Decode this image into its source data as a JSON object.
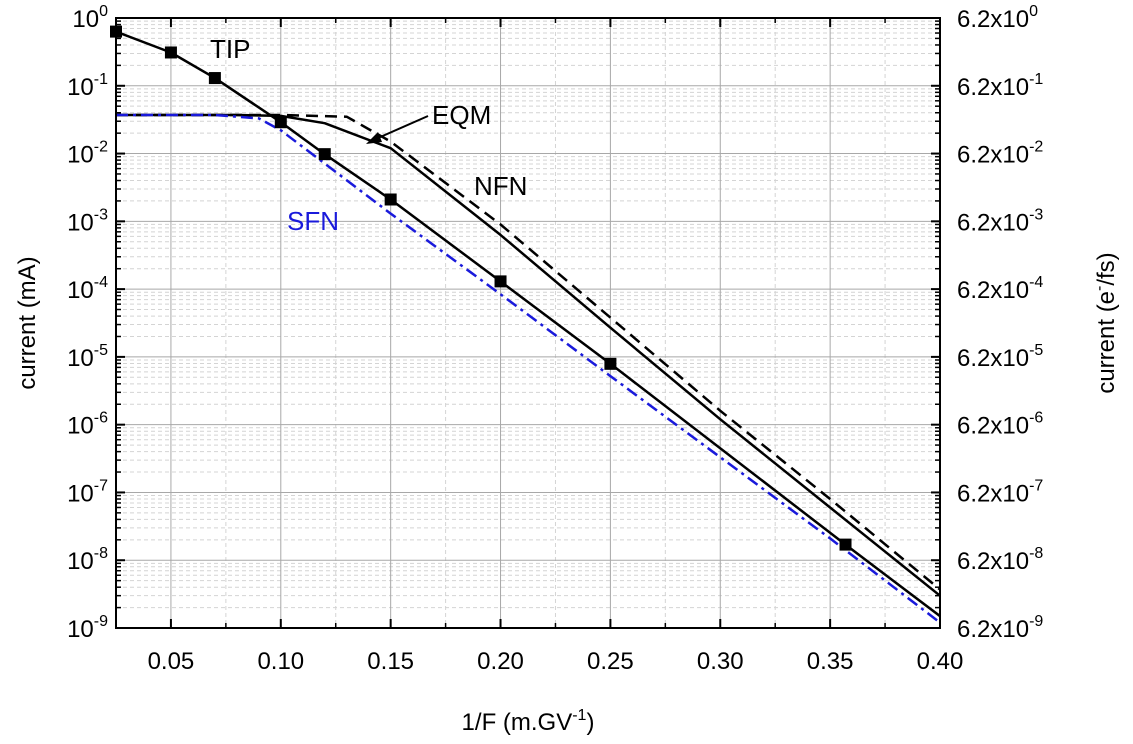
{
  "chart_data": {
    "type": "line",
    "xlabel": "1/F (m.GV",
    "xlabel_sup": "-1",
    "xlabel_end": ")",
    "ylabel": "current (mA)",
    "ylabel_right": "current (e",
    "ylabel_right_sup": "-",
    "ylabel_right_end": "/fs)",
    "xlim": [
      0.025,
      0.4
    ],
    "ylim": [
      1e-09,
      1
    ],
    "yscale": "log",
    "grid": true,
    "x_ticks": [
      "0.05",
      "0.10",
      "0.15",
      "0.20",
      "0.25",
      "0.30",
      "0.35",
      "0.40"
    ],
    "x_tick_values": [
      0.05,
      0.1,
      0.15,
      0.2,
      0.25,
      0.3,
      0.35,
      0.4
    ],
    "y_ticks": [
      {
        "base": "10",
        "exp": "0"
      },
      {
        "base": "10",
        "exp": "-1"
      },
      {
        "base": "10",
        "exp": "-2"
      },
      {
        "base": "10",
        "exp": "-3"
      },
      {
        "base": "10",
        "exp": "-4"
      },
      {
        "base": "10",
        "exp": "-5"
      },
      {
        "base": "10",
        "exp": "-6"
      },
      {
        "base": "10",
        "exp": "-7"
      },
      {
        "base": "10",
        "exp": "-8"
      },
      {
        "base": "10",
        "exp": "-9"
      }
    ],
    "y_ticks_right": [
      {
        "base": "6.2x10",
        "exp": "0"
      },
      {
        "base": "6.2x10",
        "exp": "-1"
      },
      {
        "base": "6.2x10",
        "exp": "-2"
      },
      {
        "base": "6.2x10",
        "exp": "-3"
      },
      {
        "base": "6.2x10",
        "exp": "-4"
      },
      {
        "base": "6.2x10",
        "exp": "-5"
      },
      {
        "base": "6.2x10",
        "exp": "-6"
      },
      {
        "base": "6.2x10",
        "exp": "-7"
      },
      {
        "base": "6.2x10",
        "exp": "-8"
      },
      {
        "base": "6.2x10",
        "exp": "-9"
      }
    ],
    "series": [
      {
        "name": "TIP",
        "color": "#000000",
        "style": "solid",
        "markers": true,
        "x": [
          0.025,
          0.05,
          0.07,
          0.1,
          0.12,
          0.15,
          0.2,
          0.25,
          0.357,
          0.4
        ],
        "y": [
          0.63,
          0.31,
          0.13,
          0.029,
          0.0098,
          0.0021,
          0.00013,
          7.9e-06,
          1.7e-08,
          1.5e-09
        ]
      },
      {
        "name": "EQM",
        "color": "#000000",
        "style": "solid",
        "markers": false,
        "x": [
          0.025,
          0.08,
          0.1,
          0.12,
          0.15,
          0.2,
          0.25,
          0.3,
          0.35,
          0.4
        ],
        "y": [
          0.037,
          0.037,
          0.036,
          0.028,
          0.012,
          0.00063,
          2.7e-05,
          1.2e-06,
          6e-08,
          3e-09
        ]
      },
      {
        "name": "NFN",
        "color": "#000000",
        "style": "dashed",
        "markers": false,
        "x": [
          0.025,
          0.08,
          0.1,
          0.13,
          0.15,
          0.2,
          0.25,
          0.3,
          0.35,
          0.4
        ],
        "y": [
          0.037,
          0.037,
          0.037,
          0.035,
          0.015,
          0.0009,
          3.8e-05,
          1.6e-06,
          8e-08,
          3.7e-09
        ]
      },
      {
        "name": "SFN",
        "color": "#1a1adb",
        "style": "dashdot",
        "markers": false,
        "x": [
          0.025,
          0.07,
          0.09,
          0.1,
          0.15,
          0.2,
          0.25,
          0.3,
          0.35,
          0.4
        ],
        "y": [
          0.037,
          0.037,
          0.033,
          0.022,
          0.0013,
          8.4e-05,
          5.2e-06,
          3.3e-07,
          2.1e-08,
          1.2e-09
        ]
      }
    ],
    "annotations": [
      {
        "text": "TIP",
        "color": "#000000"
      },
      {
        "text": "EQM",
        "color": "#000000"
      },
      {
        "text": "NFN",
        "color": "#000000"
      },
      {
        "text": "SFN",
        "color": "#1a1adb"
      }
    ]
  }
}
